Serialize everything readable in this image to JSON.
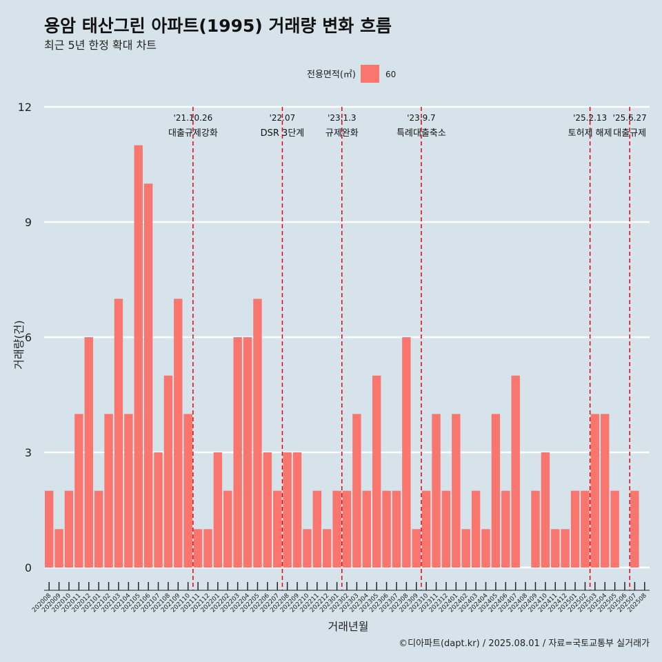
{
  "title": "용암 태산그린 아파트(1995) 거래량 변화 흐름",
  "subtitle": "최근 5년 한정 확대 차트",
  "footer": "©디아파트(dapt.kr) / 2025.08.01 / 자료=국토교통부 실거래가",
  "chart_data": {
    "type": "bar",
    "xlabel": "거래년월",
    "ylabel": "거래량(건)",
    "ylim": [
      0,
      12
    ],
    "yticks": [
      0,
      3,
      6,
      9,
      12
    ],
    "grid": true,
    "legend": {
      "title": "전용면적(㎡)",
      "position": "top",
      "entries": [
        {
          "label": "60",
          "color": "#f8766d"
        }
      ]
    },
    "series": [
      {
        "name": "60",
        "color": "#f8766d"
      }
    ],
    "categories": [
      "202008",
      "202009",
      "202010",
      "202011",
      "202012",
      "202101",
      "202102",
      "202103",
      "202104",
      "202105",
      "202106",
      "202107",
      "202108",
      "202109",
      "202110",
      "202111",
      "202112",
      "202201",
      "202202",
      "202203",
      "202204",
      "202205",
      "202206",
      "202207",
      "202208",
      "202209",
      "202210",
      "202211",
      "202212",
      "202301",
      "202302",
      "202303",
      "202304",
      "202305",
      "202306",
      "202307",
      "202308",
      "202309",
      "202310",
      "202311",
      "202312",
      "202401",
      "202402",
      "202403",
      "202404",
      "202405",
      "202406",
      "202407",
      "202408",
      "202409",
      "202410",
      "202411",
      "202412",
      "202501",
      "202502",
      "202503",
      "202504",
      "202505",
      "202506",
      "202507",
      "202508"
    ],
    "values": [
      2,
      1,
      2,
      4,
      6,
      2,
      4,
      7,
      4,
      11,
      10,
      3,
      5,
      7,
      4,
      1,
      1,
      3,
      2,
      6,
      6,
      7,
      3,
      2,
      3,
      3,
      1,
      2,
      1,
      2,
      2,
      4,
      2,
      5,
      2,
      2,
      6,
      1,
      2,
      4,
      2,
      4,
      1,
      2,
      1,
      4,
      2,
      5,
      0,
      2,
      3,
      1,
      1,
      2,
      2,
      4,
      4,
      2,
      0,
      2,
      0
    ],
    "annotations": [
      {
        "category": "202110",
        "date": "'21.10.26",
        "label": "대출규제강화"
      },
      {
        "category": "202207",
        "date": "'22.07",
        "label": "DSR 3단계"
      },
      {
        "category": "202301",
        "date": "'23.1.3",
        "label": "규제완화"
      },
      {
        "category": "202309",
        "date": "'23.9.7",
        "label": "특례대출축소"
      },
      {
        "category": "202502",
        "date": "'25.2.13",
        "label": "토허제 해제"
      },
      {
        "category": "202506",
        "date": "'25.6.27",
        "label": "대출규제"
      }
    ],
    "annotation_color": "#e8000b"
  }
}
